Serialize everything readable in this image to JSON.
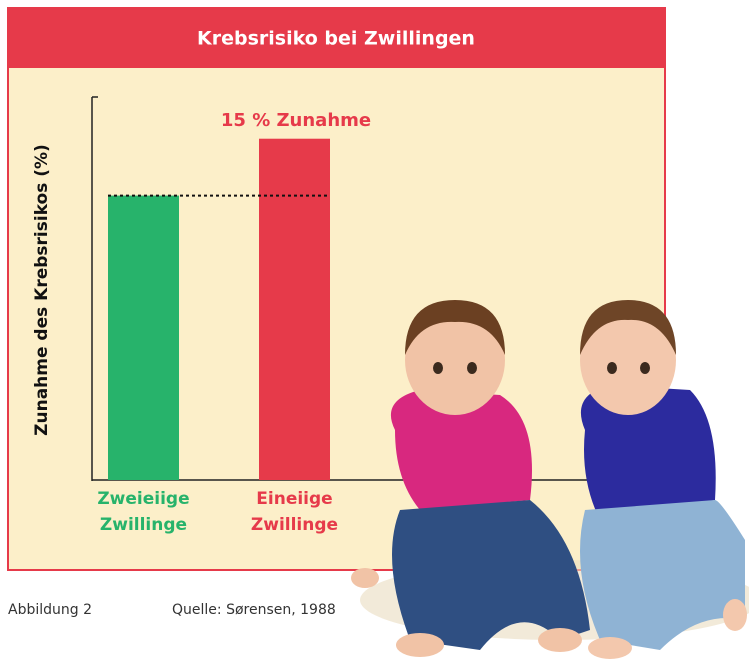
{
  "chart_data": {
    "type": "bar",
    "title": "Krebsrisiko bei Zwillingen",
    "ylabel": "Zunahme des Krebsrisikos (%)",
    "categories": [
      "Zweieiige Zwillinge",
      "Eineiige Zwillinge"
    ],
    "values": [
      100,
      115
    ],
    "colors": [
      "#27b36b",
      "#e63a4a"
    ],
    "ylim": [
      25,
      126
    ],
    "reference_line": true,
    "annotation": "15 % Zunahme",
    "figure_label": "Abbildung 2",
    "source": "Quelle: Sørensen, 1988"
  }
}
